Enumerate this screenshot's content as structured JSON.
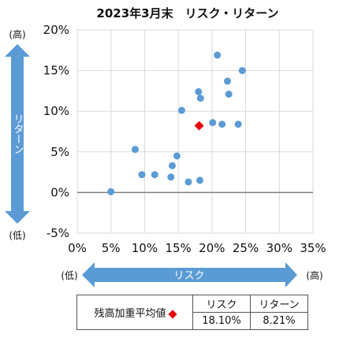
{
  "chart_data": {
    "type": "scatter",
    "title": "2023年3月末　リスク・リターン",
    "xlabel": "リスク",
    "ylabel": "リターン",
    "x_low_label": "(低)",
    "x_high_label": "(高)",
    "y_low_label": "(低)",
    "y_high_label": "(高)",
    "xlim": [
      0,
      35
    ],
    "ylim": [
      -5,
      20
    ],
    "x_ticks": [
      0,
      5,
      10,
      15,
      20,
      25,
      30,
      35
    ],
    "x_tick_labels": [
      "0%",
      "5%",
      "10%",
      "15%",
      "20%",
      "25%",
      "30%",
      "35%"
    ],
    "y_ticks": [
      -5,
      0,
      5,
      10,
      15,
      20
    ],
    "y_tick_labels": [
      "-5%",
      "0%",
      "5%",
      "10%",
      "15%",
      "20%"
    ],
    "grid": true,
    "point_color": "#5b9bd5",
    "highlight_color": "#e8000b",
    "points": [
      {
        "x": 5.0,
        "y": 0.1
      },
      {
        "x": 8.6,
        "y": 5.3
      },
      {
        "x": 9.6,
        "y": 2.2
      },
      {
        "x": 11.5,
        "y": 2.2
      },
      {
        "x": 13.9,
        "y": 1.9
      },
      {
        "x": 14.1,
        "y": 3.3
      },
      {
        "x": 14.8,
        "y": 4.5
      },
      {
        "x": 15.5,
        "y": 10.1
      },
      {
        "x": 16.5,
        "y": 1.3
      },
      {
        "x": 18.0,
        "y": 12.4
      },
      {
        "x": 18.3,
        "y": 11.6
      },
      {
        "x": 18.2,
        "y": 1.5
      },
      {
        "x": 20.1,
        "y": 8.6
      },
      {
        "x": 20.8,
        "y": 16.9
      },
      {
        "x": 21.5,
        "y": 8.4
      },
      {
        "x": 22.3,
        "y": 13.7
      },
      {
        "x": 22.5,
        "y": 12.1
      },
      {
        "x": 23.9,
        "y": 8.4
      },
      {
        "x": 24.5,
        "y": 15.0
      }
    ],
    "highlight": {
      "x": 18.1,
      "y": 8.21
    }
  },
  "summary": {
    "label": "残高加重平均値",
    "risk_header": "リスク",
    "return_header": "リターン",
    "risk_value": "18.10%",
    "return_value": "8.21%"
  }
}
